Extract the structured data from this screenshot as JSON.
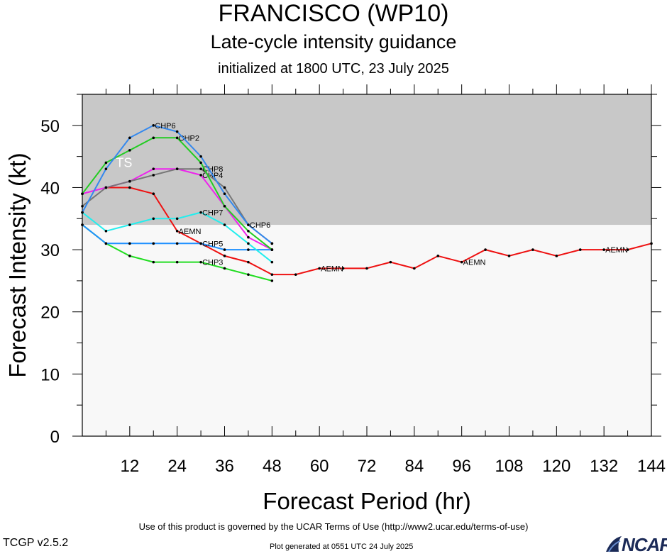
{
  "header": {
    "title": "FRANCISCO (WP10)",
    "subtitle": "Late-cycle intensity guidance",
    "init": "initialized at 1800 UTC, 23 July 2025"
  },
  "footer": {
    "terms": "Use of this product is governed by the UCAR Terms of Use (http://www2.ucar.edu/terms-of-use)",
    "generated": "Plot generated at 0551 UTC   24 July 2025",
    "version": "TCGP v2.5.2",
    "logo": "NCAR"
  },
  "colors": {
    "ts_band": "#c8c8c8",
    "lower_band": "#f8f8f8",
    "AEMN": "#ee1111",
    "CHP3": "#22dd22",
    "CHP5": "#1e90ff",
    "CHP7": "#22eeee",
    "CHP4": "#ee22ee",
    "CHP2": "#22cc22",
    "CHP6": "#3388ee",
    "CHP8": "#777777"
  },
  "chart_data": {
    "type": "line",
    "xlabel": "Forecast Period (hr)",
    "ylabel": "Forecast Intensity (kt)",
    "xlim": [
      0,
      144
    ],
    "ylim": [
      0,
      55
    ],
    "xticks": [
      12,
      24,
      36,
      48,
      60,
      72,
      84,
      96,
      108,
      120,
      132,
      144
    ],
    "yticks": [
      0,
      10,
      20,
      30,
      40,
      50
    ],
    "bands": [
      {
        "label": "TS",
        "from": 34,
        "to": 55
      }
    ],
    "series": [
      {
        "name": "AEMN",
        "color": "#ee1111",
        "x": [
          6,
          12,
          18,
          24,
          30,
          36,
          42,
          48,
          54,
          60,
          66,
          72,
          78,
          84,
          90,
          96,
          102,
          108,
          114,
          120,
          126,
          132,
          138,
          144
        ],
        "y": [
          40,
          40,
          39,
          33,
          31,
          29,
          28,
          26,
          26,
          27,
          27,
          27,
          28,
          27,
          29,
          28,
          30,
          29,
          30,
          29,
          30,
          30,
          30,
          31
        ],
        "labels_at": [
          24,
          60,
          96,
          132
        ]
      },
      {
        "name": "CHP3",
        "color": "#22dd22",
        "x": [
          0,
          6,
          12,
          18,
          24,
          30,
          36,
          42,
          48
        ],
        "y": [
          34,
          31,
          29,
          28,
          28,
          28,
          27,
          26,
          25
        ],
        "labels_at": [
          30
        ]
      },
      {
        "name": "CHP5",
        "color": "#1e90ff",
        "x": [
          0,
          6,
          12,
          18,
          24,
          30,
          36,
          42,
          48
        ],
        "y": [
          34,
          31,
          31,
          31,
          31,
          31,
          30,
          30,
          30
        ],
        "labels_at": [
          30
        ]
      },
      {
        "name": "CHP7",
        "color": "#22eeee",
        "x": [
          0,
          6,
          12,
          18,
          24,
          30,
          36,
          42,
          48
        ],
        "y": [
          36,
          33,
          34,
          35,
          35,
          36,
          34,
          31,
          28
        ],
        "labels_at": [
          30
        ]
      },
      {
        "name": "CHP4",
        "color": "#ee22ee",
        "x": [
          0,
          6,
          12,
          18,
          24,
          30,
          36,
          42,
          48
        ],
        "y": [
          39,
          40,
          41,
          43,
          43,
          42,
          37,
          32,
          30
        ],
        "labels_at": [
          30
        ]
      },
      {
        "name": "CHP8",
        "color": "#777777",
        "x": [
          0,
          6,
          12,
          18,
          24,
          30,
          36,
          42,
          48
        ],
        "y": [
          37,
          40,
          41,
          42,
          43,
          43,
          40,
          34,
          31
        ],
        "labels_at": [
          30
        ]
      },
      {
        "name": "CHP2",
        "color": "#22cc22",
        "x": [
          0,
          6,
          12,
          18,
          24,
          30,
          36,
          42,
          48
        ],
        "y": [
          39,
          44,
          46,
          48,
          48,
          44,
          37,
          33,
          30
        ],
        "labels_at": [
          24
        ]
      },
      {
        "name": "CHP6",
        "color": "#3388ee",
        "x": [
          0,
          6,
          12,
          18,
          24,
          30,
          36,
          42,
          48
        ],
        "y": [
          36,
          43,
          48,
          50,
          49,
          45,
          39,
          34,
          31
        ],
        "labels_at": [
          18,
          42
        ]
      }
    ]
  }
}
